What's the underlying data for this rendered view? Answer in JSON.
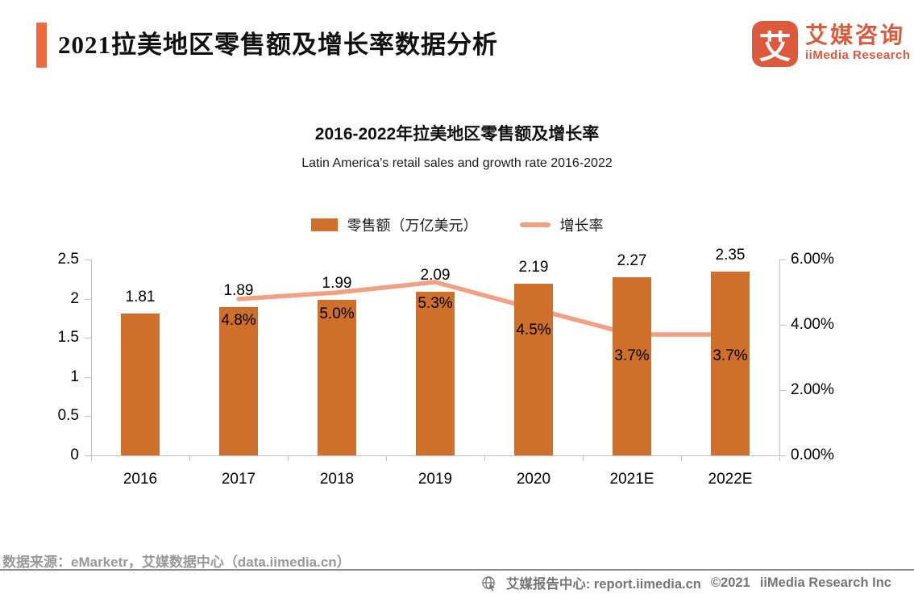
{
  "header": {
    "title": "2021拉美地区零售额及增长率数据分析",
    "logo": {
      "mark": "艾",
      "brand_cn": "艾媒咨询",
      "brand_en": "iiMedia Research"
    }
  },
  "chart": {
    "title": "2016-2022年拉美地区零售额及增长率",
    "subtitle": "Latin America's retail sales and growth rate 2016-2022",
    "legend_bar_label": "零售额（万亿美元）",
    "legend_line_label": "增长率"
  },
  "chart_data": {
    "type": "bar",
    "categories": [
      "2016",
      "2017",
      "2018",
      "2019",
      "2020",
      "2021E",
      "2022E"
    ],
    "series": [
      {
        "name": "零售额（万亿美元）",
        "type": "bar",
        "axis": "left",
        "values": [
          1.81,
          1.89,
          1.99,
          2.09,
          2.19,
          2.27,
          2.35
        ],
        "labels": [
          "1.81",
          "1.89",
          "1.99",
          "2.09",
          "2.19",
          "2.27",
          "2.35"
        ],
        "color": "#CE6F2B"
      },
      {
        "name": "增长率",
        "type": "line",
        "axis": "right",
        "values": [
          null,
          4.8,
          5.0,
          5.3,
          4.5,
          3.7,
          3.7
        ],
        "labels": [
          null,
          "4.8%",
          "5.0%",
          "5.3%",
          "4.5%",
          "3.7%",
          "3.7%"
        ],
        "color": "#F1A183"
      }
    ],
    "left_axis": {
      "ticks": [
        "2.5",
        "2",
        "1.5",
        "1",
        "0.5",
        "0"
      ],
      "range": [
        0,
        2.5
      ]
    },
    "right_axis": {
      "ticks": [
        "6.00%",
        "4.00%",
        "2.00%",
        "0.00%"
      ],
      "range": [
        0,
        6
      ]
    },
    "grid": false,
    "legend_position": "top",
    "title": "2016-2022年拉美地区零售额及增长率",
    "subtitle": "Latin America's retail sales and growth rate 2016-2022"
  },
  "footer": {
    "source": "数据来源：eMarketr，艾媒数据中心（data.iimedia.cn）",
    "report_center": "艾媒报告中心: report.iimedia.cn",
    "copyright": "©2021",
    "company": "iiMedia Research Inc"
  },
  "colors": {
    "accent": "#F4683C",
    "brand": "#DC5A3B",
    "bar": "#CE6F2B",
    "line": "#F1A183",
    "axis": "#BFBFBF"
  }
}
